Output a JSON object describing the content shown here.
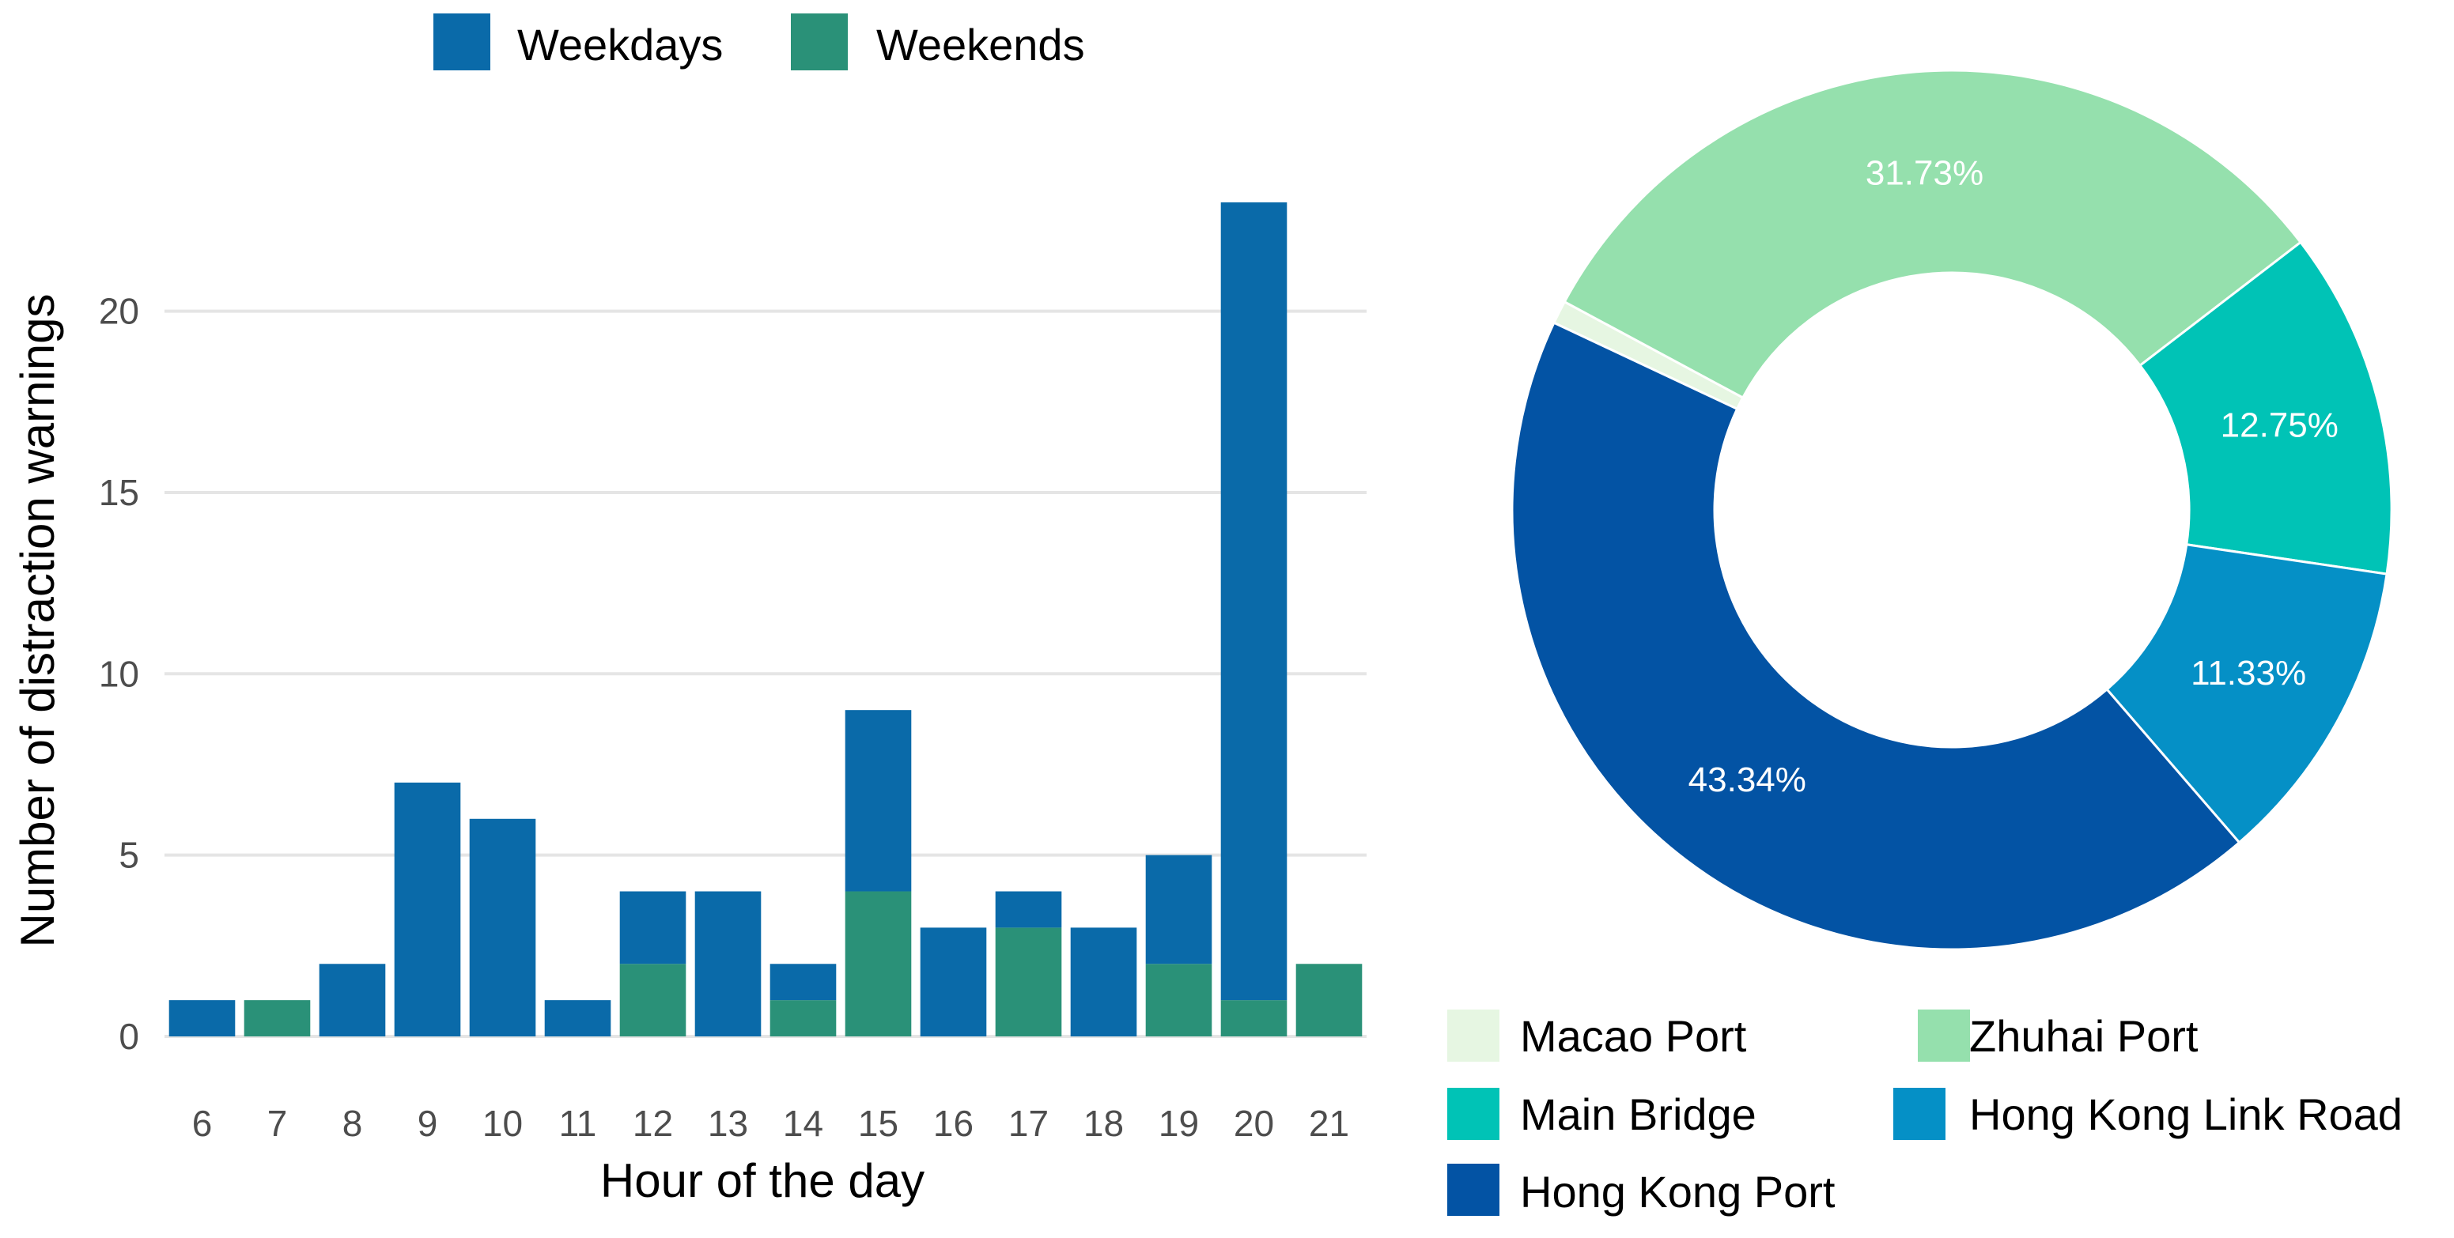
{
  "chart_data": [
    {
      "type": "bar",
      "stacked": true,
      "categories": [
        "6",
        "7",
        "8",
        "9",
        "10",
        "11",
        "12",
        "13",
        "14",
        "15",
        "16",
        "17",
        "18",
        "19",
        "20",
        "21"
      ],
      "series": [
        {
          "name": "Weekdays",
          "color": "#0a6aa9",
          "values": [
            1,
            0,
            2,
            7,
            6,
            1,
            2,
            4,
            1,
            5,
            3,
            1,
            3,
            3,
            22,
            0
          ]
        },
        {
          "name": "Weekends",
          "color": "#2a9178",
          "values": [
            0,
            1,
            0,
            0,
            0,
            0,
            2,
            0,
            1,
            4,
            0,
            3,
            0,
            2,
            1,
            2
          ]
        }
      ],
      "xlabel": "Hour of the day",
      "ylabel": "Number of distraction warnings",
      "ylim": [
        0,
        23
      ],
      "yticks": [
        0,
        5,
        10,
        15,
        20
      ],
      "grid": true,
      "legend_position": "top"
    },
    {
      "type": "pie",
      "donut": true,
      "slices": [
        {
          "name": "Macao Port",
          "value": 0.85,
          "label": "",
          "color": "#e6f6e2"
        },
        {
          "name": "Zhuhai Port",
          "value": 31.73,
          "label": "31.73%",
          "color": "#95e0ad"
        },
        {
          "name": "Main Bridge",
          "value": 12.75,
          "label": "12.75%",
          "color": "#00c3b6"
        },
        {
          "name": "Hong Kong Link Road",
          "value": 11.33,
          "label": "11.33%",
          "color": "#0590c6"
        },
        {
          "name": "Hong Kong Port",
          "value": 43.34,
          "label": "43.34%",
          "color": "#0353a4"
        }
      ],
      "legend_position": "bottom"
    }
  ]
}
